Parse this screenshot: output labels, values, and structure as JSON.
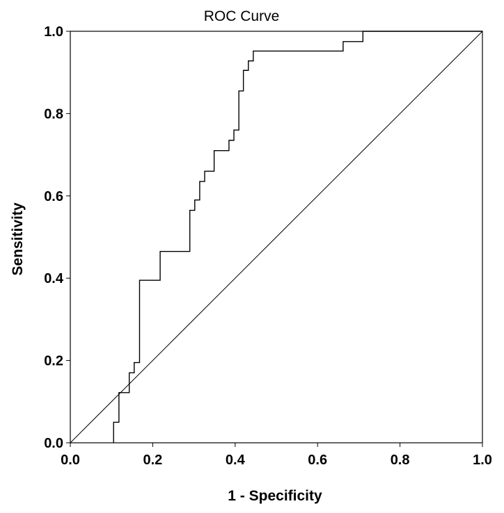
{
  "chart_data": {
    "type": "line",
    "title": "ROC Curve",
    "xlabel": "1 - Specificity",
    "ylabel": "Sensitivity",
    "xlim": [
      0,
      1
    ],
    "ylim": [
      0,
      1
    ],
    "x_ticks": [
      "0.0",
      "0.2",
      "0.4",
      "0.6",
      "0.8",
      "1.0"
    ],
    "y_ticks": [
      "0.0",
      "0.2",
      "0.4",
      "0.6",
      "0.8",
      "1.0"
    ],
    "grid": false,
    "legend": "none",
    "series": [
      {
        "points": [
          [
            0.105,
            0.0
          ],
          [
            0.105,
            0.05
          ],
          [
            0.118,
            0.05
          ],
          [
            0.118,
            0.122
          ],
          [
            0.143,
            0.122
          ],
          [
            0.143,
            0.17
          ],
          [
            0.155,
            0.17
          ],
          [
            0.155,
            0.195
          ],
          [
            0.168,
            0.195
          ],
          [
            0.168,
            0.395
          ],
          [
            0.218,
            0.395
          ],
          [
            0.218,
            0.465
          ],
          [
            0.29,
            0.465
          ],
          [
            0.29,
            0.565
          ],
          [
            0.302,
            0.565
          ],
          [
            0.302,
            0.59
          ],
          [
            0.314,
            0.59
          ],
          [
            0.314,
            0.635
          ],
          [
            0.326,
            0.635
          ],
          [
            0.326,
            0.66
          ],
          [
            0.349,
            0.66
          ],
          [
            0.349,
            0.71
          ],
          [
            0.385,
            0.71
          ],
          [
            0.385,
            0.735
          ],
          [
            0.397,
            0.735
          ],
          [
            0.397,
            0.76
          ],
          [
            0.409,
            0.76
          ],
          [
            0.409,
            0.855
          ],
          [
            0.42,
            0.855
          ],
          [
            0.42,
            0.905
          ],
          [
            0.432,
            0.905
          ],
          [
            0.432,
            0.928
          ],
          [
            0.444,
            0.928
          ],
          [
            0.444,
            0.952
          ],
          [
            0.662,
            0.952
          ],
          [
            0.662,
            0.975
          ],
          [
            0.71,
            0.975
          ],
          [
            0.71,
            1.0
          ],
          [
            1.0,
            1.0
          ]
        ]
      },
      {
        "points": [
          [
            0.0,
            0.0
          ],
          [
            1.0,
            1.0
          ]
        ]
      }
    ]
  }
}
